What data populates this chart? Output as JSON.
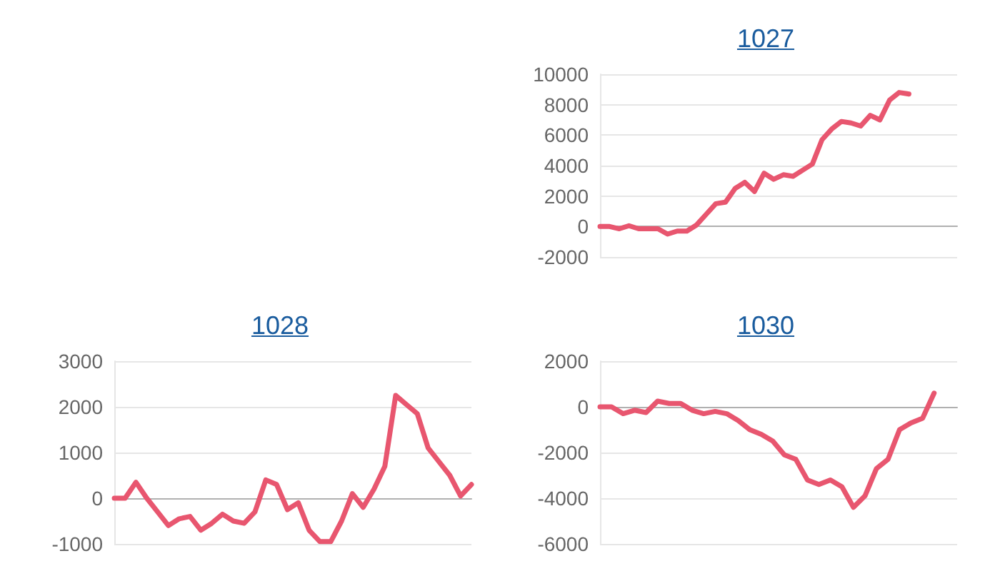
{
  "chart_data": [
    {
      "type": "line",
      "title": "1027",
      "categories": [
        null,
        null,
        null,
        null,
        null,
        null,
        null,
        null,
        null,
        null,
        null,
        null,
        null,
        null,
        null,
        null,
        null,
        null,
        null,
        null,
        null,
        null,
        null,
        null,
        null,
        null,
        null,
        null,
        null,
        null,
        null,
        null,
        null,
        null,
        null,
        null,
        null,
        null
      ],
      "series": [
        {
          "color": "#e8566f",
          "values": [
            0,
            0,
            -150,
            50,
            -150,
            -150,
            -150,
            -500,
            -300,
            -300,
            100,
            800,
            1500,
            1600,
            2500,
            2900,
            2300,
            3500,
            3100,
            3400,
            3300,
            3700,
            4100,
            5700,
            6400,
            6900,
            6800,
            6600,
            7300,
            7000,
            8300,
            8800,
            8700,
            null,
            null,
            null,
            null,
            null
          ]
        }
      ],
      "ylim": [
        -2000,
        10000
      ],
      "yticks": [
        -2000,
        0,
        2000,
        4000,
        6000,
        8000,
        10000
      ],
      "grid": "y",
      "marker": "none"
    },
    {
      "type": "line",
      "title": "1028",
      "categories": [
        null,
        null,
        null,
        null,
        null,
        null,
        null,
        null,
        null,
        null,
        null,
        null,
        null,
        null,
        null,
        null,
        null,
        null,
        null,
        null,
        null,
        null,
        null,
        null,
        null,
        null,
        null,
        null,
        null,
        null,
        null,
        null,
        null,
        null
      ],
      "series": [
        {
          "color": "#e8566f",
          "values": [
            0,
            0,
            350,
            0,
            -300,
            -600,
            -450,
            -400,
            -700,
            -550,
            -350,
            -500,
            -550,
            -300,
            400,
            300,
            -250,
            -100,
            -700,
            -950,
            -950,
            -500,
            100,
            -200,
            200,
            700,
            2250,
            2050,
            1850,
            1100,
            800,
            500,
            50,
            300
          ]
        }
      ],
      "ylim": [
        -1000,
        3000
      ],
      "yticks": [
        -1000,
        0,
        1000,
        2000,
        3000
      ],
      "grid": "y",
      "marker": "none"
    },
    {
      "type": "line",
      "title": "1030",
      "categories": [
        null,
        null,
        null,
        null,
        null,
        null,
        null,
        null,
        null,
        null,
        null,
        null,
        null,
        null,
        null,
        null,
        null,
        null,
        null,
        null,
        null,
        null,
        null,
        null,
        null,
        null,
        null,
        null,
        null,
        null,
        null,
        null
      ],
      "series": [
        {
          "color": "#e8566f",
          "values": [
            0,
            0,
            -300,
            -150,
            -250,
            250,
            150,
            150,
            -150,
            -300,
            -200,
            -300,
            -600,
            -1000,
            -1200,
            -1500,
            -2100,
            -2300,
            -3200,
            -3400,
            -3200,
            -3500,
            -4400,
            -3900,
            -2700,
            -2300,
            -1000,
            -700,
            -500,
            600,
            null,
            null
          ]
        }
      ],
      "ylim": [
        -6000,
        2000
      ],
      "yticks": [
        -6000,
        -4000,
        -2000,
        0,
        2000
      ],
      "grid": "y",
      "marker": "none"
    }
  ]
}
